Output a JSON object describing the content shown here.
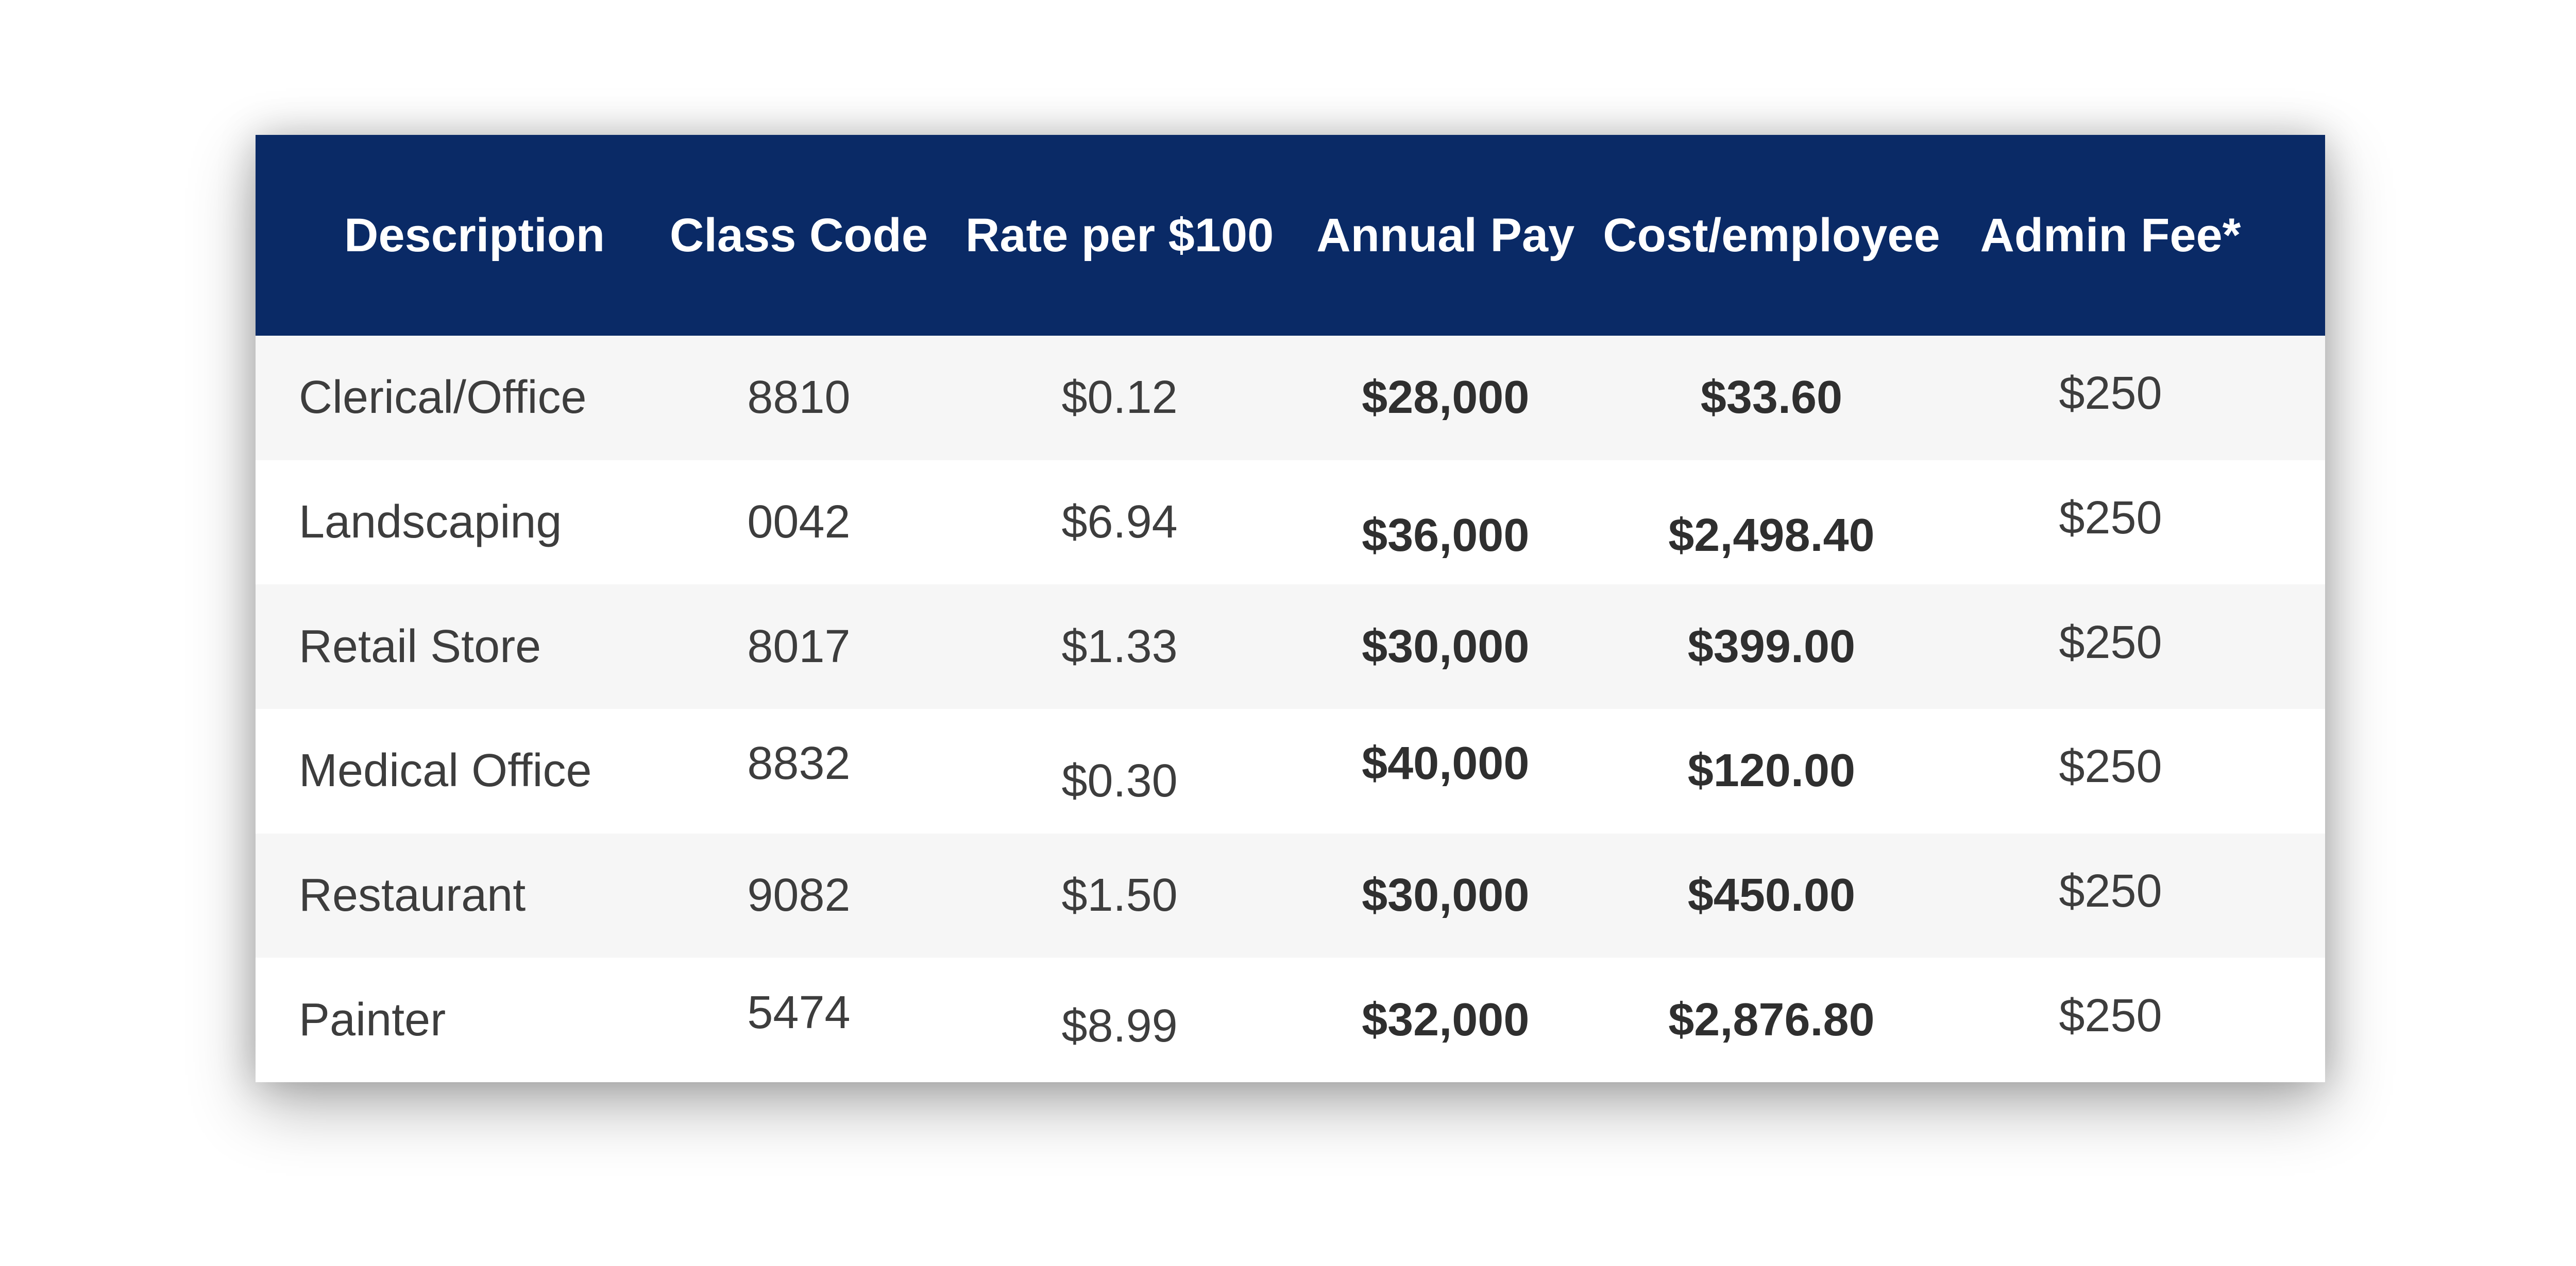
{
  "colors": {
    "page_bg": "#ffffff",
    "header_bg": "#0a2a66",
    "header_text": "#ffffff",
    "row_bg": "#ffffff",
    "row_alt_bg": "#f6f6f6",
    "cell_text": "#3d3d3d",
    "bold_cell_text": "#2f2f2f"
  },
  "chart_data": {
    "type": "table",
    "columns": [
      "Description",
      "Class Code",
      "Rate per $100",
      "Annual Pay",
      "Cost/employee",
      "Admin Fee*"
    ],
    "bold_value_columns": [
      "Annual Pay",
      "Cost/employee"
    ],
    "rows": [
      [
        "Clerical/Office",
        "8810",
        "$0.12",
        "$28,000",
        "$33.60",
        "$250"
      ],
      [
        "Landscaping",
        "0042",
        "$6.94",
        "$36,000",
        "$2,498.40",
        "$250"
      ],
      [
        "Retail Store",
        "8017",
        "$1.33",
        "$30,000",
        "$399.00",
        "$250"
      ],
      [
        "Medical Office",
        "8832",
        "$0.30",
        "$40,000",
        "$120.00",
        "$250"
      ],
      [
        "Restaurant",
        "9082",
        "$1.50",
        "$30,000",
        "$450.00",
        "$250"
      ],
      [
        "Painter",
        "5474",
        "$8.99",
        "$32,000",
        "$2,876.80",
        "$250"
      ]
    ]
  }
}
